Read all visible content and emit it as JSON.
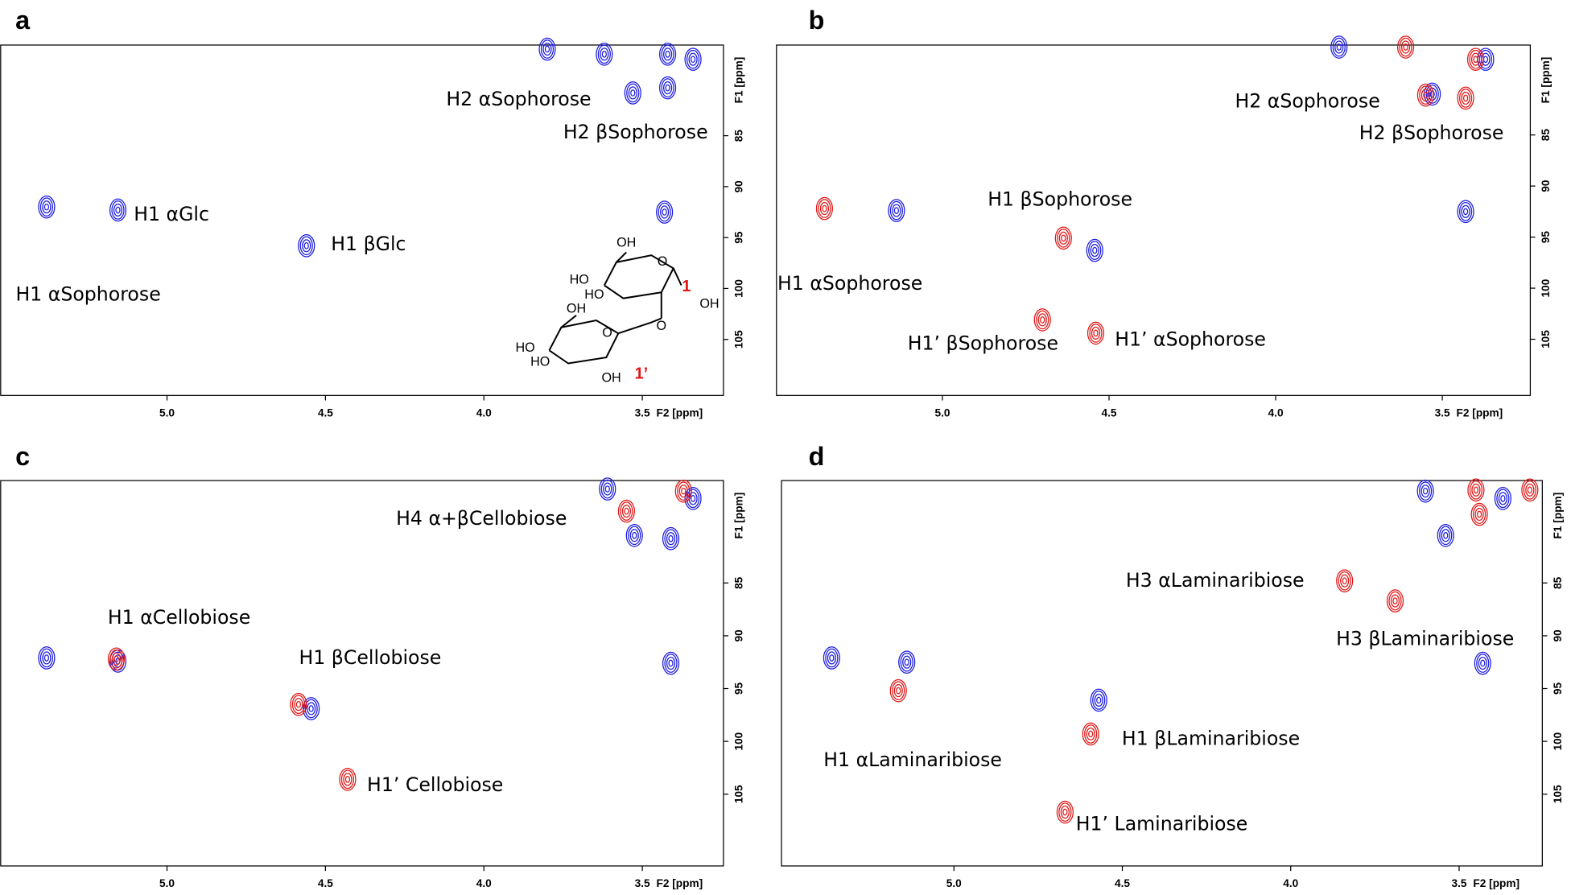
{
  "chart_data": [
    {
      "type": "contour",
      "panel": "a",
      "xlabel": "F2 [ppm]",
      "ylabel": "F1 [ppm]",
      "xlim": [
        5.525,
        3.244
      ],
      "ylim": [
        76.1,
        110.5
      ],
      "xticks": [
        {
          "value": 5,
          "label": "5.0"
        },
        4.5,
        {
          "value": 4,
          "label": "4.0"
        },
        3.5
      ],
      "yticks": [
        85,
        90,
        95,
        100,
        105
      ],
      "series": [
        {
          "color": "#1a1ae0",
          "x": [
            5.38,
            5.155,
            4.56,
            3.53,
            3.42,
            3.43,
            3.8,
            3.62,
            3.42,
            3.34
          ],
          "y": [
            92,
            92.3,
            95.8,
            80.8,
            80.3,
            92.5,
            76.5,
            77,
            77,
            77.5
          ]
        }
      ],
      "annotations": [
        "H2 αSophorose",
        "H2 βSophorose",
        "H1 αGlc",
        "H1 βGlc",
        "H1 αSophorose"
      ],
      "structure_labels": [
        "OH",
        "HO",
        "HO",
        "O",
        "1",
        "OH",
        "O",
        "OH",
        "HO",
        "HO",
        "O",
        "1’",
        "OH"
      ]
    },
    {
      "type": "contour",
      "panel": "b",
      "xlabel": "F2 [ppm]",
      "ylabel": "F1 [ppm]",
      "xlim": [
        5.498,
        3.236
      ],
      "ylim": [
        76.2,
        110.5
      ],
      "xticks": [
        {
          "value": 5,
          "label": "5.0"
        },
        4.5,
        {
          "value": 4,
          "label": "4.0"
        },
        3.5
      ],
      "yticks": [
        85,
        90,
        95,
        100,
        105
      ],
      "series": [
        {
          "color": "#1a1ae0",
          "x": [
            5.138,
            4.543,
            3.53,
            3.43,
            3.81,
            3.37
          ],
          "y": [
            92.4,
            96.3,
            81,
            92.5,
            76.4,
            77.6
          ]
        },
        {
          "color": "#e01414",
          "x": [
            5.354,
            4.637,
            4.7,
            4.54,
            3.55,
            3.43,
            3.61,
            3.4
          ],
          "y": [
            92.2,
            95.1,
            103.1,
            104.4,
            81.1,
            81.4,
            76.4,
            77.6
          ]
        }
      ],
      "annotations": [
        "H2 αSophorose",
        "H2 βSophorose",
        "H1 βSophorose",
        "H1 αSophorose",
        "H1’ βSophorose",
        "H1’ αSophorose"
      ]
    },
    {
      "type": "contour",
      "panel": "c",
      "xlabel": "F2 [ppm]",
      "ylabel": "F1 [ppm]",
      "xlim": [
        5.525,
        3.244
      ],
      "ylim": [
        75.3,
        111.8
      ],
      "xticks": [
        {
          "value": 5,
          "label": "5.0"
        },
        4.5,
        {
          "value": 4,
          "label": "4.0"
        },
        3.5
      ],
      "yticks": [
        85,
        90,
        95,
        100,
        105
      ],
      "series": [
        {
          "color": "#1a1ae0",
          "x": [
            5.38,
            5.155,
            4.545,
            3.525,
            3.41,
            3.41,
            3.61,
            3.34
          ],
          "y": [
            92.1,
            92.4,
            96.9,
            80.5,
            80.8,
            92.6,
            76.1,
            77
          ]
        },
        {
          "color": "#e01414",
          "x": [
            5.16,
            4.585,
            4.43,
            3.55,
            3.37
          ],
          "y": [
            92.2,
            96.5,
            103.6,
            78.2,
            76.3
          ]
        }
      ],
      "annotations": [
        "H4 α+βCellobiose",
        "H1 αCellobiose",
        "H1 βCellobiose",
        "H1’ Cellobiose"
      ]
    },
    {
      "type": "contour",
      "panel": "d",
      "xlabel": "F2 [ppm]",
      "ylabel": "F1 [ppm]",
      "xlim": [
        5.512,
        3.253
      ],
      "ylim": [
        75.3,
        111.8
      ],
      "xticks": [
        {
          "value": 5,
          "label": "5.0"
        },
        4.5,
        {
          "value": 4,
          "label": "4.0"
        },
        3.5
      ],
      "yticks": [
        85,
        90,
        95,
        100,
        105
      ],
      "series": [
        {
          "color": "#1a1ae0",
          "x": [
            5.363,
            5.14,
            4.57,
            3.54,
            3.43,
            3.6,
            3.37
          ],
          "y": [
            92.1,
            92.5,
            96.1,
            80.5,
            92.6,
            76.3,
            77
          ]
        },
        {
          "color": "#e01414",
          "x": [
            5.165,
            4.594,
            4.67,
            3.84,
            3.69,
            3.44,
            3.45,
            3.29
          ],
          "y": [
            95.2,
            99.3,
            106.7,
            84.8,
            86.7,
            78.5,
            76.2,
            76.2
          ]
        }
      ],
      "annotations": [
        "H3 αLaminaribiose",
        "H3 βLaminaribiose",
        "H1 αLaminaribiose",
        "H1 βLaminaribiose",
        "H1’ Laminaribiose"
      ]
    }
  ]
}
